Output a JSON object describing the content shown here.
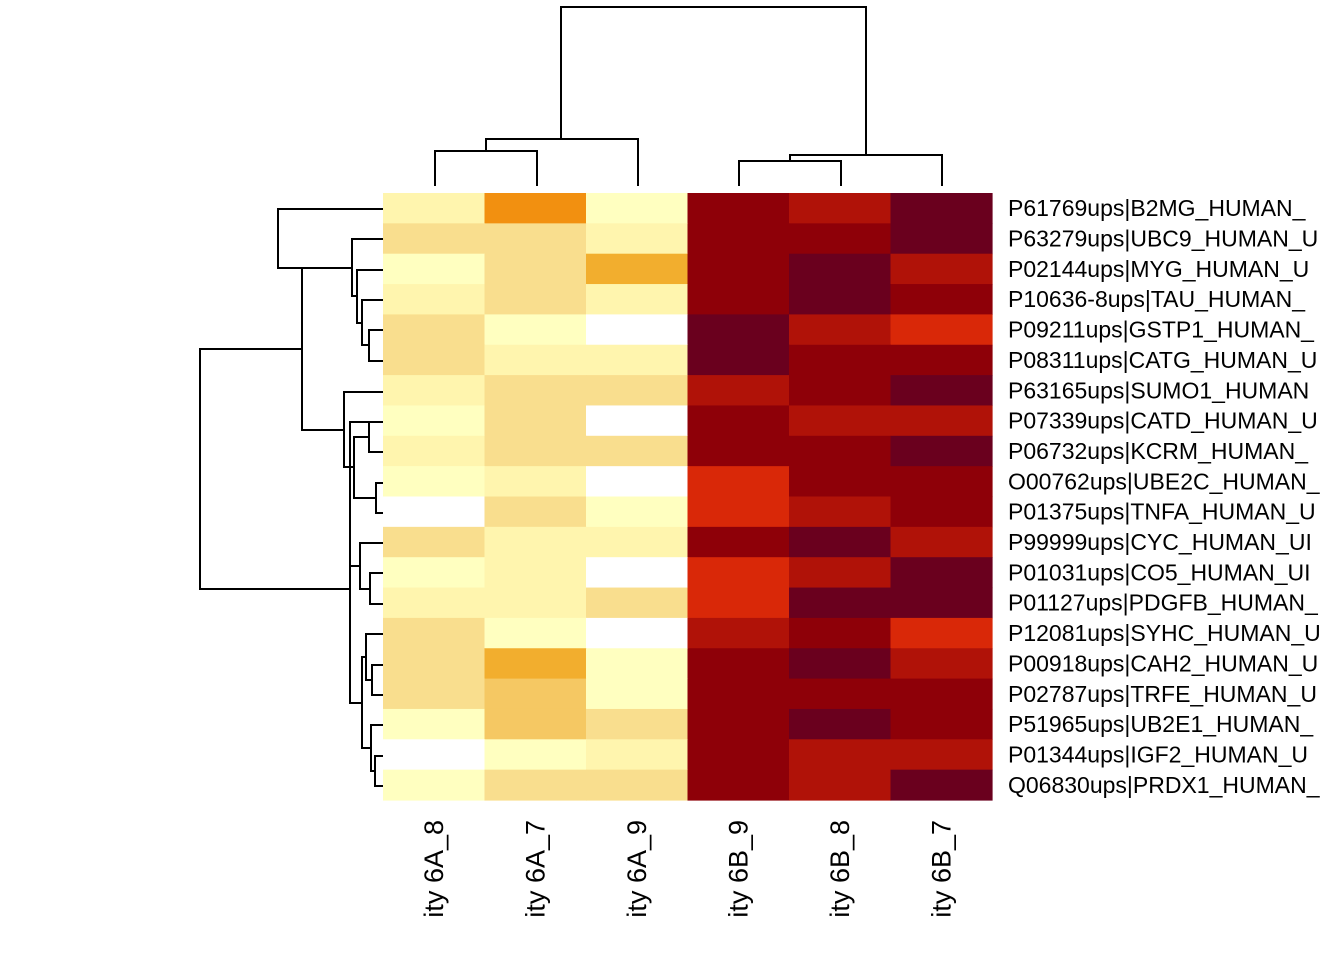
{
  "chart_data": {
    "type": "heatmap",
    "title": "",
    "xlabel": "",
    "ylabel": "",
    "columns": [
      "ity 6A_8",
      "ity 6A_7",
      "ity 6A_9",
      "ity 6B_9",
      "ity 6B_8",
      "ity 6B_7"
    ],
    "rows": [
      "P61769ups|B2MG_HUMAN_",
      "P63279ups|UBC9_HUMAN_U",
      "P02144ups|MYG_HUMAN_U",
      "P10636-8ups|TAU_HUMAN_",
      "P09211ups|GSTP1_HUMAN_",
      "P08311ups|CATG_HUMAN_U",
      "P63165ups|SUMO1_HUMAN",
      "P07339ups|CATD_HUMAN_U",
      "P06732ups|KCRM_HUMAN_",
      "O00762ups|UBE2C_HUMAN_",
      "P01375ups|TNFA_HUMAN_U",
      "P99999ups|CYC_HUMAN_UI",
      "P01031ups|CO5_HUMAN_UI",
      "P01127ups|PDGFB_HUMAN_",
      "P12081ups|SYHC_HUMAN_U",
      "P00918ups|CAH2_HUMAN_U",
      "P02787ups|TRFE_HUMAN_U",
      "P51965ups|UB2E1_HUMAN_",
      "P01344ups|IGF2_HUMAN_U",
      "Q06830ups|PRDX1_HUMAN_"
    ],
    "color_scale": {
      "name": "heat.colors (reversed)",
      "levels": [
        "#FFFFFF",
        "#FFFFC0",
        "#FFF5AE",
        "#F9DE8E",
        "#F5C863",
        "#F2AE2E",
        "#F29010",
        "#D92808",
        "#B01208",
        "#8E0008",
        "#6A001E"
      ],
      "low": "#FFFFFF",
      "high": "#6A001E"
    },
    "values": [
      [
        2,
        6,
        1,
        9,
        8,
        10
      ],
      [
        3,
        3,
        2,
        9,
        9,
        10
      ],
      [
        1,
        3,
        5,
        9,
        10,
        8
      ],
      [
        2,
        3,
        2,
        9,
        10,
        9
      ],
      [
        3,
        1,
        0,
        10,
        8,
        7
      ],
      [
        3,
        2,
        2,
        10,
        9,
        9
      ],
      [
        2,
        3,
        3,
        8,
        9,
        10
      ],
      [
        1,
        3,
        0,
        9,
        8,
        8
      ],
      [
        2,
        3,
        3,
        9,
        9,
        10
      ],
      [
        1,
        2,
        0,
        7,
        9,
        9
      ],
      [
        0,
        3,
        1,
        7,
        8,
        9
      ],
      [
        3,
        2,
        2,
        9,
        10,
        8
      ],
      [
        1,
        2,
        0,
        7,
        8,
        10
      ],
      [
        2,
        2,
        3,
        7,
        10,
        10
      ],
      [
        3,
        1,
        0,
        8,
        9,
        7
      ],
      [
        3,
        5,
        1,
        9,
        10,
        8
      ],
      [
        3,
        4,
        1,
        9,
        9,
        9
      ],
      [
        1,
        4,
        3,
        9,
        10,
        9
      ],
      [
        0,
        1,
        2,
        9,
        8,
        8
      ],
      [
        1,
        3,
        3,
        9,
        8,
        10
      ]
    ],
    "legend": "none",
    "grid": false
  }
}
